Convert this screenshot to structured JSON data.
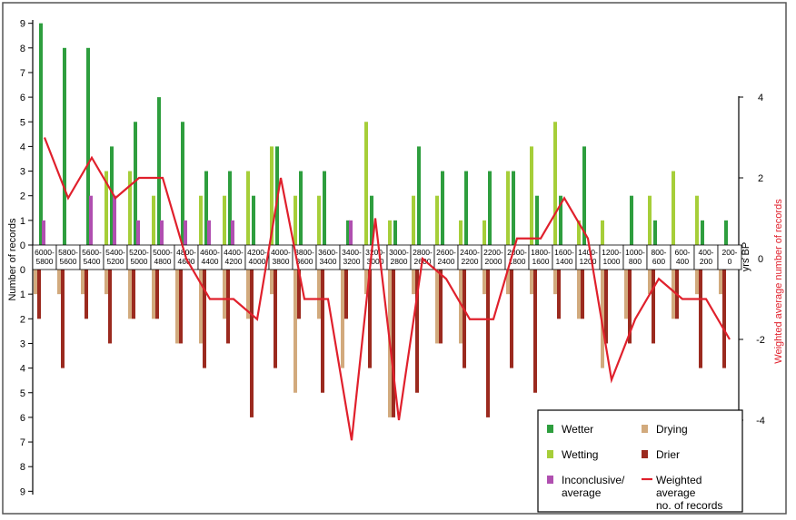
{
  "chart_data": {
    "type": "bar",
    "categories": [
      [
        "6000-",
        "5800"
      ],
      [
        "5800-",
        "5600"
      ],
      [
        "5600-",
        "5400"
      ],
      [
        "5400-",
        "5200"
      ],
      [
        "5200-",
        "5000"
      ],
      [
        "5000-",
        "4800"
      ],
      [
        "4800-",
        "4600"
      ],
      [
        "4600-",
        "4400"
      ],
      [
        "4400-",
        "4200"
      ],
      [
        "4200-",
        "4000"
      ],
      [
        "4000-",
        "3800"
      ],
      [
        "3800-",
        "3600"
      ],
      [
        "3600-",
        "3400"
      ],
      [
        "3400-",
        "3200"
      ],
      [
        "3200-",
        "3000"
      ],
      [
        "3000-",
        "2800"
      ],
      [
        "2800-",
        "2600"
      ],
      [
        "2600-",
        "2400"
      ],
      [
        "2400-",
        "2200"
      ],
      [
        "2200-",
        "2000"
      ],
      [
        "2000-",
        "1800"
      ],
      [
        "1800-",
        "1600"
      ],
      [
        "1600-",
        "1400"
      ],
      [
        "1400-",
        "1200"
      ],
      [
        "1200-",
        "1000"
      ],
      [
        "1000-",
        "800"
      ],
      [
        "800-",
        "600"
      ],
      [
        "600-",
        "400"
      ],
      [
        "400-",
        "200"
      ],
      [
        "200-",
        "0"
      ]
    ],
    "xlabel": "yrs BP",
    "ylabel": "Number of records",
    "y2label": "Weighted average number of records",
    "ylim_top": [
      0,
      9
    ],
    "ylim_bottom": [
      0,
      9
    ],
    "y2lim": [
      -4,
      4
    ],
    "y_ticks": [
      0,
      1,
      2,
      3,
      4,
      5,
      6,
      7,
      8,
      9
    ],
    "y2_ticks": [
      -4,
      -2,
      0,
      2,
      4
    ],
    "legend_position": "bottom-right",
    "series_upper": [
      {
        "name": "Wetting",
        "color": "#a6ce39",
        "values": [
          0,
          0,
          0,
          3,
          3,
          2,
          0,
          2,
          2,
          3,
          4,
          2,
          2,
          0,
          5,
          1,
          2,
          2,
          1,
          1,
          3,
          4,
          5,
          1,
          1,
          0,
          2,
          3,
          2,
          0
        ]
      },
      {
        "name": "Wetter",
        "color": "#2e9e3e",
        "values": [
          9,
          8,
          8,
          4,
          5,
          6,
          5,
          3,
          3,
          2,
          4,
          3,
          3,
          1,
          2,
          1,
          4,
          3,
          3,
          3,
          3,
          2,
          2,
          4,
          0,
          2,
          1,
          0,
          1,
          1
        ]
      },
      {
        "name": "Inconclusive/ average",
        "color": "#b04fb0",
        "values": [
          1,
          0,
          2,
          2,
          1,
          1,
          1,
          1,
          1,
          0,
          0,
          0,
          0,
          1,
          0,
          0,
          0,
          0,
          0,
          0,
          0,
          0,
          0,
          0,
          0,
          0,
          0,
          0,
          0,
          0
        ]
      }
    ],
    "series_lower": [
      {
        "name": "Drying",
        "color": "#d2aa7d",
        "values": [
          1,
          1,
          1,
          1,
          2,
          2,
          3,
          3,
          2,
          2,
          1,
          5,
          2,
          4,
          1,
          6,
          1,
          3,
          3,
          1,
          1,
          1,
          1,
          2,
          4,
          2,
          1,
          2,
          1,
          1
        ]
      },
      {
        "name": "Drier",
        "color": "#9b2a1f",
        "values": [
          2,
          4,
          2,
          3,
          2,
          2,
          3,
          4,
          3,
          6,
          4,
          2,
          5,
          2,
          4,
          6,
          5,
          3,
          4,
          6,
          4,
          5,
          2,
          2,
          3,
          3,
          3,
          2,
          4,
          4
        ]
      }
    ],
    "line": {
      "name": "Weighted average no. of records",
      "color": "#e0202c",
      "values": [
        3,
        1.5,
        2.5,
        1.5,
        2,
        2,
        0,
        -1,
        -1,
        -1.5,
        2,
        -1,
        -1,
        -4.5,
        1,
        -4,
        0,
        -0.5,
        -1.5,
        -1.5,
        0.5,
        0.5,
        1.5,
        0.5,
        -3,
        -1.5,
        -0.5,
        -1,
        -1,
        -2
      ]
    },
    "legend": [
      {
        "name": "Wetter",
        "color": "#2e9e3e",
        "kind": "swatch"
      },
      {
        "name": "Drying",
        "color": "#d2aa7d",
        "kind": "swatch"
      },
      {
        "name": "Wetting",
        "color": "#a6ce39",
        "kind": "swatch"
      },
      {
        "name": "Drier",
        "color": "#9b2a1f",
        "kind": "swatch"
      },
      {
        "name": "Inconclusive/ average",
        "color": "#b04fb0",
        "kind": "swatch"
      },
      {
        "name": "Weighted average no. of records",
        "color": "#e0202c",
        "kind": "line"
      }
    ]
  }
}
